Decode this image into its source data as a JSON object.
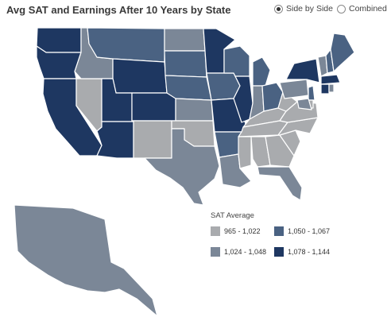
{
  "header": {
    "title": "Avg SAT and Earnings After 10 Years by State",
    "options": [
      {
        "label": "Side by Side",
        "selected": true
      },
      {
        "label": "Combined",
        "selected": false
      }
    ]
  },
  "colors": {
    "light": "#a9abae",
    "mid": "#7b8797",
    "dark_mid": "#4a6282",
    "dark": "#1e3761",
    "border": "#ffffff"
  },
  "legend": {
    "title": "SAT Average",
    "items": [
      {
        "label": "965 - 1,022",
        "color": "#a9abae"
      },
      {
        "label": "1,050 - 1,067",
        "color": "#4a6282"
      },
      {
        "label": "1,024 - 1,048",
        "color": "#7b8797"
      },
      {
        "label": "1,078 - 1,144",
        "color": "#1e3761"
      }
    ]
  },
  "map_data": {
    "metric": "SAT Average",
    "bins": [
      "965 - 1,022",
      "1,024 - 1,048",
      "1,050 - 1,067",
      "1,078 - 1,144"
    ],
    "states": {
      "WA": 4,
      "OR": 4,
      "CA": 4,
      "NV": 1,
      "ID": 2,
      "MT": 3,
      "WY": 4,
      "UT": 4,
      "AZ": 4,
      "CO": 4,
      "NM": 1,
      "ND": 2,
      "SD": 3,
      "NE": 3,
      "KS": 2,
      "OK": 1,
      "TX": 2,
      "MN": 4,
      "IA": 3,
      "MO": 4,
      "AR": 3,
      "LA": 2,
      "WI": 3,
      "IL": 4,
      "MI": 3,
      "IN": 2,
      "OH": 3,
      "KY": 1,
      "TN": 1,
      "MS": 1,
      "AL": 1,
      "GA": 1,
      "FL": 2,
      "SC": 1,
      "NC": 1,
      "VA": 1,
      "WV": 1,
      "PA": 2,
      "NY": 4,
      "VT": 2,
      "NH": 3,
      "ME": 3,
      "MA": 4,
      "CT": 4,
      "RI": 2,
      "NJ": 3,
      "DE": 1,
      "MD": 2,
      "AK": 2
    }
  }
}
